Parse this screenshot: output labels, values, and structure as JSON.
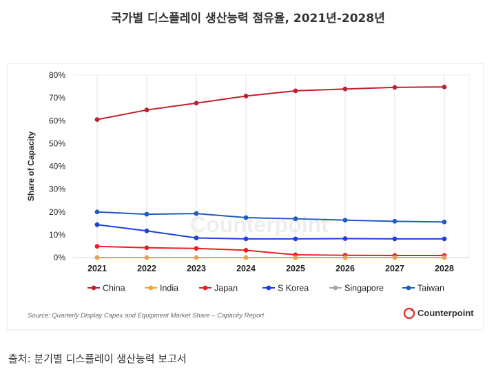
{
  "page_title": "국가별 디스플레이 생산능력 점유율, 2021년-2028년",
  "caption": "출처: 분기별 디스플레이 생산능력 보고서",
  "brand": {
    "name": "Counterpoint",
    "color": "#e53935"
  },
  "chart_data": {
    "type": "line",
    "title": "",
    "xlabel": "",
    "ylabel": "Share of Capacity",
    "x": [
      "2021",
      "2022",
      "2023",
      "2024",
      "2025",
      "2026",
      "2027",
      "2028"
    ],
    "ylim": [
      0,
      80
    ],
    "yticks": [
      0,
      10,
      20,
      30,
      40,
      50,
      60,
      70,
      80
    ],
    "ytick_labels": [
      "0%",
      "10%",
      "20%",
      "30%",
      "40%",
      "50%",
      "60%",
      "70%",
      "80%"
    ],
    "grid": "vertical",
    "legend_position": "bottom",
    "series": [
      {
        "name": "China",
        "color": "#c0212e",
        "values": [
          60.5,
          64.7,
          67.7,
          70.8,
          73.1,
          73.9,
          74.6,
          74.8
        ]
      },
      {
        "name": "India",
        "color": "#f2a33a",
        "values": [
          0,
          0,
          0,
          0,
          0,
          0,
          0,
          0
        ]
      },
      {
        "name": "Japan",
        "color": "#e8201f",
        "values": [
          4.9,
          4.3,
          4.0,
          3.2,
          1.2,
          1.0,
          0.9,
          0.9
        ]
      },
      {
        "name": "S Korea",
        "color": "#1c3fe0",
        "values": [
          14.4,
          11.7,
          8.6,
          8.2,
          8.2,
          8.3,
          8.2,
          8.2
        ]
      },
      {
        "name": "Singapore",
        "color": "#a6a6a6",
        "values": [
          0,
          0,
          0,
          0,
          0,
          0,
          0,
          0
        ]
      },
      {
        "name": "Taiwan",
        "color": "#1f5cbf",
        "values": [
          20.0,
          19.0,
          19.3,
          17.5,
          17.0,
          16.4,
          15.9,
          15.6
        ]
      }
    ],
    "source": "Source: Quarterly Display Capex and Equipment Market Share – Capacity Report"
  }
}
